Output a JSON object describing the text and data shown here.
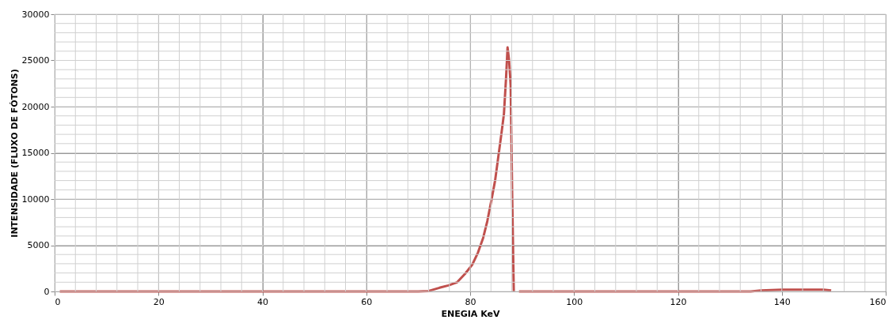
{
  "chart_data": {
    "type": "line",
    "xlabel": "ENEGIA KeV",
    "ylabel": "INTENSIDADE (FLUXO DE FÓTONS)",
    "x": [
      1,
      70,
      72,
      74.1,
      75.8,
      77.5,
      79,
      80.4,
      81.5,
      82.5,
      83.3,
      84.1,
      84.8,
      85.4,
      86,
      86.5,
      86.9,
      87.2,
      87.5,
      87.8,
      88.1,
      88.4,
      89,
      89.4,
      134,
      136,
      140,
      148,
      149.5
    ],
    "series": [
      {
        "color": "#c0504d",
        "values": [
          0,
          0,
          50,
          400,
          650,
          1000,
          1900,
          2900,
          4200,
          5800,
          7600,
          9900,
          12000,
          14500,
          17000,
          19200,
          23000,
          26400,
          25000,
          22300,
          10000,
          0,
          null,
          0,
          0,
          100,
          200,
          200,
          100
        ]
      }
    ],
    "xlim": [
      0,
      160
    ],
    "xticks": [
      0,
      20,
      40,
      60,
      80,
      100,
      120,
      140,
      160
    ],
    "ylim": [
      0,
      30000
    ],
    "yticks": [
      0,
      5000,
      10000,
      15000,
      20000,
      25000,
      30000
    ],
    "grid": true,
    "line_style": "solid",
    "marker": "none"
  }
}
